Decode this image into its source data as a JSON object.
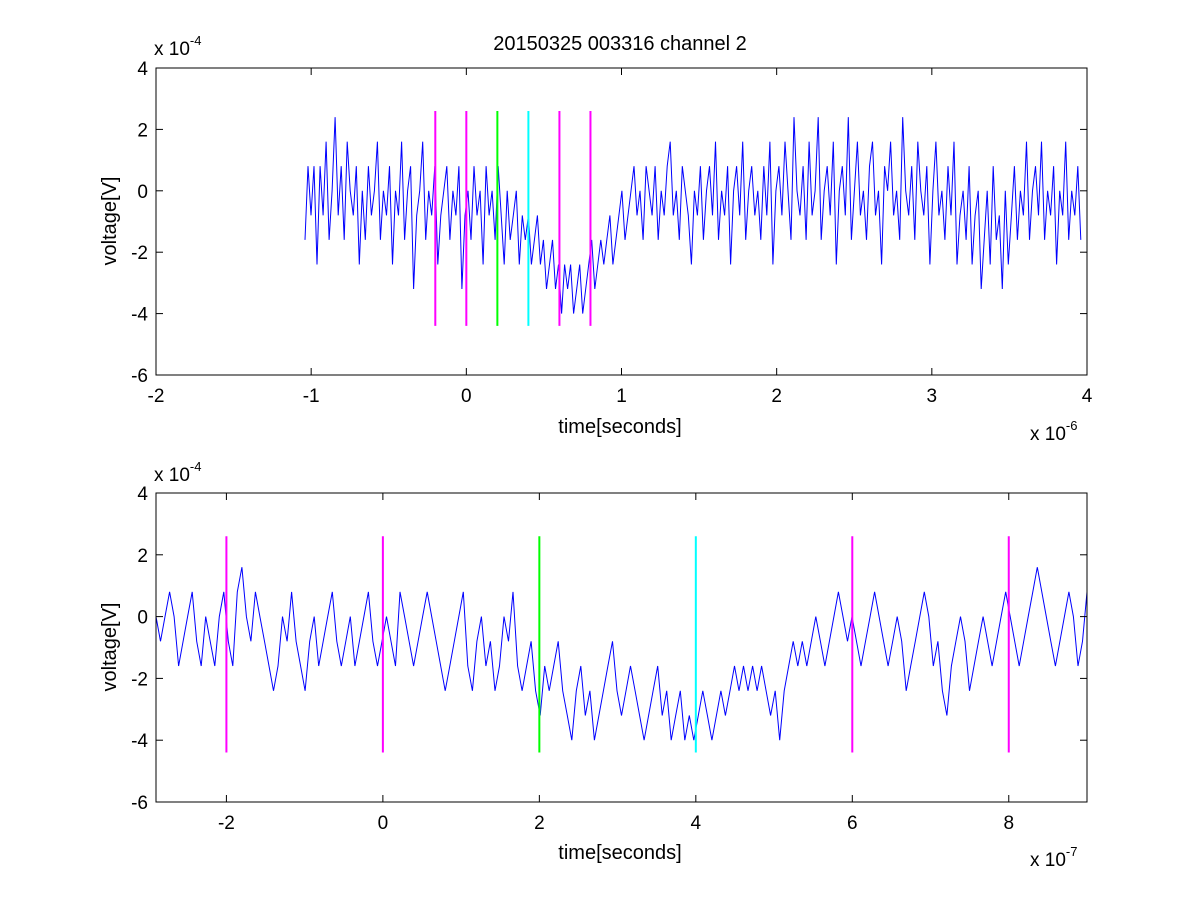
{
  "title": "20150325 003316 channel 2",
  "chart_data": [
    {
      "type": "line",
      "xlabel": "time[seconds]",
      "ylabel": "voltage[V]",
      "x_exponent_label": "x 10",
      "x_exponent_value": "-6",
      "y_exponent_label": "x 10",
      "y_exponent_value": "-4",
      "xlim": [
        -2,
        4
      ],
      "ylim": [
        -6,
        4
      ],
      "xticks": [
        -2,
        -1,
        0,
        1,
        2,
        3,
        4
      ],
      "xtick_labels": [
        "-2",
        "-1",
        "0",
        "1",
        "2",
        "3",
        "4"
      ],
      "yticks": [
        -6,
        -4,
        -2,
        0,
        2,
        4
      ],
      "ytick_labels": [
        "-6",
        "-4",
        "-2",
        "0",
        "2",
        "4"
      ],
      "grid": false,
      "series": [
        {
          "color": "#0000ff",
          "x_range": [
            -1.04,
            3.96
          ],
          "values": [
            -1.6,
            0.8,
            -0.8,
            0.8,
            -2.4,
            0.8,
            -0.8,
            1.6,
            -1.6,
            0.0,
            2.4,
            -0.8,
            0.8,
            -1.6,
            1.6,
            0.0,
            -0.8,
            0.8,
            -2.4,
            0.0,
            -1.6,
            0.8,
            -0.8,
            0.0,
            1.6,
            -1.6,
            0.0,
            -0.8,
            0.8,
            -2.4,
            0.0,
            -0.8,
            1.6,
            -1.6,
            0.0,
            0.8,
            -3.2,
            -0.8,
            0.0,
            1.6,
            -1.6,
            0.0,
            -0.8,
            0.8,
            -2.4,
            -0.8,
            0.0,
            0.8,
            -1.6,
            0.0,
            -0.8,
            0.8,
            -3.2,
            -0.8,
            0.0,
            -1.6,
            0.8,
            -0.8,
            0.0,
            -2.4,
            0.8,
            -0.8,
            0.0,
            -1.6,
            0.8,
            -0.8,
            -2.4,
            0.0,
            -1.6,
            -0.8,
            0.0,
            -2.4,
            -0.8,
            -1.6,
            -0.8,
            -2.4,
            -1.6,
            -0.8,
            -2.4,
            -1.6,
            -3.2,
            -2.4,
            -1.6,
            -3.2,
            -2.4,
            -4.0,
            -2.4,
            -3.2,
            -2.4,
            -4.0,
            -3.2,
            -2.4,
            -4.0,
            -3.2,
            -2.4,
            -1.6,
            -3.2,
            -2.4,
            -1.6,
            -2.4,
            -1.6,
            -0.8,
            -2.4,
            -1.6,
            -0.8,
            0.0,
            -1.6,
            -0.8,
            0.0,
            0.8,
            -0.8,
            0.0,
            -1.6,
            0.8,
            0.0,
            -0.8,
            0.8,
            -1.6,
            0.0,
            -0.8,
            0.8,
            1.6,
            -0.8,
            0.0,
            -1.6,
            0.8,
            0.0,
            -0.8,
            -2.4,
            0.0,
            -0.8,
            0.8,
            -1.6,
            0.0,
            0.8,
            -0.8,
            1.6,
            -1.6,
            0.0,
            -0.8,
            0.8,
            -2.4,
            0.0,
            0.8,
            -0.8,
            1.6,
            -1.6,
            0.0,
            0.8,
            -0.8,
            0.0,
            -1.6,
            0.8,
            -0.8,
            1.6,
            -2.4,
            0.0,
            0.8,
            -0.8,
            1.6,
            0.0,
            -1.6,
            2.4,
            0.0,
            -0.8,
            0.8,
            -1.6,
            1.6,
            -0.8,
            0.0,
            2.4,
            -1.6,
            0.0,
            0.8,
            -0.8,
            1.6,
            -2.4,
            0.0,
            0.8,
            -0.8,
            2.4,
            -1.6,
            0.0,
            1.6,
            -0.8,
            0.0,
            -1.6,
            0.8,
            1.6,
            -0.8,
            0.0,
            -2.4,
            0.8,
            0.0,
            1.6,
            -0.8,
            0.0,
            -1.6,
            2.4,
            0.0,
            -0.8,
            0.8,
            -1.6,
            1.6,
            0.0,
            -0.8,
            0.8,
            -2.4,
            0.0,
            1.6,
            -0.8,
            0.0,
            -1.6,
            0.8,
            -0.8,
            1.6,
            -2.4,
            -0.8,
            0.0,
            -1.6,
            0.8,
            -2.4,
            -0.8,
            0.0,
            -3.2,
            -1.6,
            0.0,
            -2.4,
            0.8,
            -1.6,
            -0.8,
            -3.2,
            0.0,
            -2.4,
            -0.8,
            0.8,
            -1.6,
            0.0,
            -0.8,
            1.6,
            -1.6,
            0.0,
            0.8,
            -0.8,
            1.6,
            -1.6,
            0.0,
            -0.8,
            0.8,
            -2.4,
            0.0,
            -0.8,
            1.6,
            -1.6,
            0.0,
            -0.8,
            0.8,
            -1.6
          ]
        }
      ],
      "markers": [
        {
          "x": -0.2,
          "color": "#ff00ff"
        },
        {
          "x": 0.0,
          "color": "#ff00ff"
        },
        {
          "x": 0.2,
          "color": "#00ff00"
        },
        {
          "x": 0.4,
          "color": "#00ffff"
        },
        {
          "x": 0.6,
          "color": "#ff00ff"
        },
        {
          "x": 0.8,
          "color": "#ff00ff"
        }
      ],
      "marker_yrange": [
        -4.4,
        2.6
      ]
    },
    {
      "type": "line",
      "xlabel": "time[seconds]",
      "ylabel": "voltage[V]",
      "x_exponent_label": "x 10",
      "x_exponent_value": "-7",
      "y_exponent_label": "x 10",
      "y_exponent_value": "-4",
      "xlim": [
        -2.9,
        9.0
      ],
      "ylim": [
        -6,
        4
      ],
      "xticks": [
        -2,
        0,
        2,
        4,
        6,
        8
      ],
      "xtick_labels": [
        "-2",
        "0",
        "2",
        "4",
        "6",
        "8"
      ],
      "yticks": [
        -6,
        -4,
        -2,
        0,
        2,
        4
      ],
      "ytick_labels": [
        "-6",
        "-4",
        "-2",
        "0",
        "2",
        "4"
      ],
      "grid": false,
      "series": [
        {
          "color": "#0000ff",
          "x_range": [
            -2.9,
            9.0
          ],
          "values": [
            0.0,
            -0.8,
            0.0,
            0.8,
            0.0,
            -1.6,
            -0.8,
            0.0,
            0.8,
            -0.8,
            -1.6,
            0.0,
            -0.8,
            -1.6,
            0.0,
            0.8,
            -0.8,
            -1.6,
            0.8,
            1.6,
            0.0,
            -0.8,
            0.8,
            0.0,
            -0.8,
            -1.6,
            -2.4,
            -1.6,
            0.0,
            -0.8,
            0.8,
            -0.8,
            -1.6,
            -2.4,
            -0.8,
            0.0,
            -1.6,
            -0.8,
            0.0,
            0.8,
            -0.8,
            -1.6,
            -0.8,
            0.0,
            -1.6,
            -0.8,
            0.0,
            0.8,
            -0.8,
            -1.6,
            -0.8,
            0.0,
            -0.8,
            -1.6,
            0.8,
            0.0,
            -0.8,
            -1.6,
            -0.8,
            0.0,
            0.8,
            0.0,
            -0.8,
            -1.6,
            -2.4,
            -1.6,
            -0.8,
            0.0,
            0.8,
            -1.6,
            -2.4,
            -0.8,
            0.0,
            -1.6,
            -0.8,
            -2.4,
            -1.6,
            0.0,
            -0.8,
            0.8,
            -1.6,
            -2.4,
            -1.6,
            -0.8,
            -2.4,
            -3.2,
            -1.6,
            -2.4,
            -1.6,
            -0.8,
            -2.4,
            -3.2,
            -4.0,
            -2.4,
            -1.6,
            -3.2,
            -2.4,
            -4.0,
            -3.2,
            -2.4,
            -1.6,
            -0.8,
            -2.4,
            -3.2,
            -2.4,
            -1.6,
            -2.4,
            -3.2,
            -4.0,
            -3.2,
            -2.4,
            -1.6,
            -3.2,
            -2.4,
            -4.0,
            -3.2,
            -2.4,
            -4.0,
            -3.2,
            -4.0,
            -3.2,
            -2.4,
            -3.2,
            -4.0,
            -3.2,
            -2.4,
            -3.2,
            -2.4,
            -1.6,
            -2.4,
            -1.6,
            -2.4,
            -1.6,
            -2.4,
            -1.6,
            -2.4,
            -3.2,
            -2.4,
            -4.0,
            -2.4,
            -1.6,
            -0.8,
            -1.6,
            -0.8,
            -1.6,
            -0.8,
            0.0,
            -0.8,
            -1.6,
            -0.8,
            0.0,
            0.8,
            0.0,
            -0.8,
            0.0,
            -0.8,
            -1.6,
            -0.8,
            0.0,
            0.8,
            0.0,
            -0.8,
            -1.6,
            -0.8,
            0.0,
            -0.8,
            -2.4,
            -1.6,
            -0.8,
            0.0,
            0.8,
            0.0,
            -1.6,
            -0.8,
            -2.4,
            -3.2,
            -1.6,
            -0.8,
            0.0,
            -0.8,
            -2.4,
            -1.6,
            -0.8,
            0.0,
            -0.8,
            -1.6,
            -0.8,
            0.0,
            0.8,
            0.0,
            -0.8,
            -1.6,
            -0.8,
            0.0,
            0.8,
            1.6,
            0.8,
            0.0,
            -0.8,
            -1.6,
            -0.8,
            0.0,
            0.8,
            0.0,
            -1.6,
            -0.8,
            0.8
          ]
        }
      ],
      "markers": [
        {
          "x": -2.0,
          "color": "#ff00ff"
        },
        {
          "x": 0.0,
          "color": "#ff00ff"
        },
        {
          "x": 2.0,
          "color": "#00ff00"
        },
        {
          "x": 4.0,
          "color": "#00ffff"
        },
        {
          "x": 6.0,
          "color": "#ff00ff"
        },
        {
          "x": 8.0,
          "color": "#ff00ff"
        }
      ],
      "marker_yrange": [
        -4.4,
        2.6
      ]
    }
  ]
}
